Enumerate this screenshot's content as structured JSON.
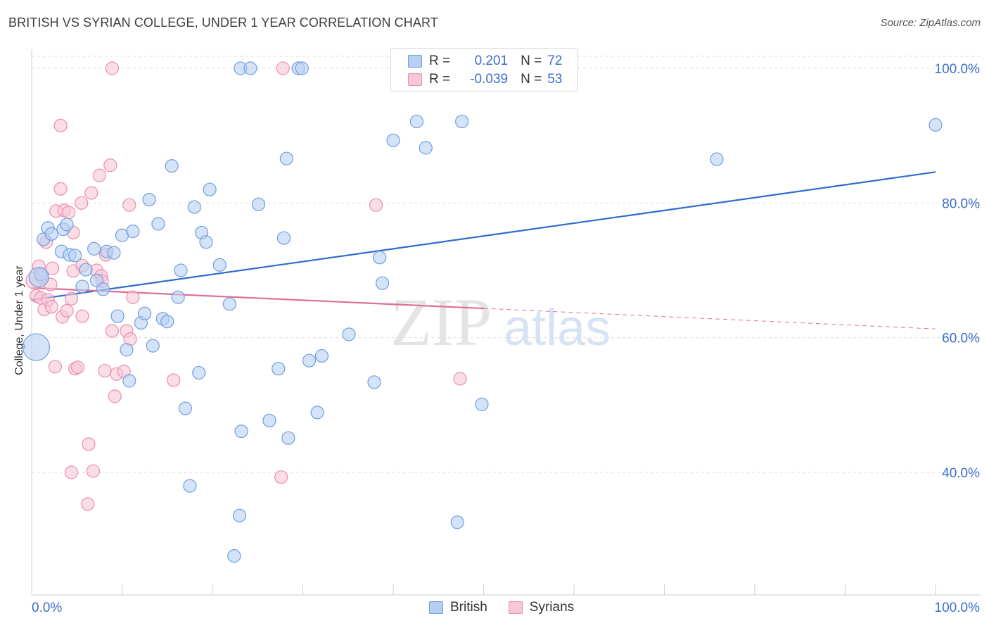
{
  "title": "BRITISH VS SYRIAN COLLEGE, UNDER 1 YEAR CORRELATION CHART",
  "source": "Source: ZipAtlas.com",
  "watermark": {
    "zip": "ZIP",
    "atlas": "atlas"
  },
  "legend": {
    "british": {
      "r_label": "R =",
      "r_value": "0.201",
      "n_label": "N =",
      "n_value": "72"
    },
    "syrians": {
      "r_label": "R =",
      "r_value": "-0.039",
      "n_label": "N =",
      "n_value": "53"
    }
  },
  "colors": {
    "british_fill": "#b7d0f2",
    "british_stroke": "#6f9ee0",
    "british_line": "#2f6ccc",
    "syrians_fill": "#f8c6d6",
    "syrians_stroke": "#ea8eb0",
    "syrians_line": "#e06f96",
    "axis_text": "#3a6fc9",
    "grid": "#dcdcdc"
  },
  "chart_data": {
    "type": "scatter",
    "xlabel": "",
    "ylabel": "College, Under 1 year",
    "x_tick_labels": [
      "0.0%",
      "100.0%"
    ],
    "y_tick_labels": [
      "40.0%",
      "60.0%",
      "80.0%",
      "100.0%"
    ],
    "x_range": [
      0,
      100
    ],
    "y_range": [
      20,
      102
    ],
    "grid": true,
    "legend_position": "top-center",
    "series": [
      {
        "name": "British",
        "r": 0.201,
        "n": 72,
        "trend": {
          "x": [
            0,
            100
          ],
          "y": [
            65.6,
            84.6
          ],
          "dashed_from": null
        },
        "points": [
          [
            1.0,
            69.4
          ],
          [
            1.3,
            74.6
          ],
          [
            1.8,
            76.3
          ],
          [
            2.2,
            75.4
          ],
          [
            3.5,
            76.1
          ],
          [
            3.9,
            76.8
          ],
          [
            3.3,
            72.8
          ],
          [
            4.2,
            72.3
          ],
          [
            4.8,
            72.2
          ],
          [
            5.6,
            67.6
          ],
          [
            6.0,
            70.1
          ],
          [
            6.9,
            73.2
          ],
          [
            7.2,
            68.5
          ],
          [
            7.9,
            67.2
          ],
          [
            8.3,
            72.8
          ],
          [
            9.1,
            72.6
          ],
          [
            9.5,
            63.2
          ],
          [
            10.0,
            75.2
          ],
          [
            10.5,
            58.2
          ],
          [
            10.8,
            53.6
          ],
          [
            11.2,
            75.8
          ],
          [
            12.1,
            62.2
          ],
          [
            12.5,
            63.6
          ],
          [
            13.0,
            80.5
          ],
          [
            13.4,
            58.8
          ],
          [
            14.0,
            76.9
          ],
          [
            14.5,
            62.8
          ],
          [
            15.0,
            62.4
          ],
          [
            15.5,
            85.5
          ],
          [
            16.2,
            66.0
          ],
          [
            16.5,
            70.0
          ],
          [
            17.0,
            49.5
          ],
          [
            17.5,
            38.0
          ],
          [
            18.0,
            79.4
          ],
          [
            18.5,
            54.8
          ],
          [
            18.8,
            75.6
          ],
          [
            19.3,
            74.2
          ],
          [
            19.7,
            82.0
          ],
          [
            20.8,
            70.8
          ],
          [
            21.9,
            65.0
          ],
          [
            22.4,
            27.6
          ],
          [
            23.0,
            33.6
          ],
          [
            23.2,
            46.1
          ],
          [
            23.1,
            100.0
          ],
          [
            24.2,
            100.0
          ],
          [
            25.1,
            79.8
          ],
          [
            26.3,
            47.7
          ],
          [
            27.3,
            55.4
          ],
          [
            27.9,
            74.8
          ],
          [
            28.2,
            86.6
          ],
          [
            28.4,
            45.1
          ],
          [
            29.5,
            100.0
          ],
          [
            29.9,
            100.0
          ],
          [
            30.7,
            56.6
          ],
          [
            31.6,
            48.9
          ],
          [
            32.1,
            57.3
          ],
          [
            35.1,
            60.5
          ],
          [
            37.9,
            53.4
          ],
          [
            38.5,
            71.9
          ],
          [
            38.8,
            68.1
          ],
          [
            40.0,
            89.3
          ],
          [
            42.6,
            92.1
          ],
          [
            43.6,
            88.2
          ],
          [
            47.1,
            32.6
          ],
          [
            47.6,
            92.1
          ],
          [
            49.8,
            50.1
          ],
          [
            50.1,
            100.0
          ],
          [
            51.8,
            100.0
          ],
          [
            75.8,
            86.5
          ],
          [
            100.0,
            91.6
          ],
          [
            0.5,
            58.6
          ],
          [
            0.8,
            69.0
          ]
        ],
        "sizes": [
          24,
          24,
          24,
          24,
          24,
          24,
          24,
          24,
          24,
          24,
          24,
          24,
          24,
          24,
          24,
          24,
          24,
          24,
          24,
          24,
          24,
          24,
          24,
          24,
          24,
          24,
          24,
          24,
          24,
          24,
          24,
          24,
          24,
          24,
          24,
          24,
          24,
          24,
          24,
          24,
          24,
          24,
          24,
          24,
          24,
          24,
          24,
          24,
          24,
          24,
          24,
          24,
          24,
          24,
          24,
          24,
          24,
          24,
          24,
          24,
          24,
          24,
          24,
          24,
          24,
          24,
          24,
          24,
          24,
          24,
          44,
          34
        ]
      },
      {
        "name": "Syrians",
        "r": -0.039,
        "n": 53,
        "trend": {
          "x": [
            0,
            100
          ],
          "y": [
            67.4,
            61.3
          ],
          "dashed_from": 50
        },
        "points": [
          [
            0.3,
            68.5
          ],
          [
            0.5,
            66.2
          ],
          [
            0.8,
            70.6
          ],
          [
            1.0,
            65.9
          ],
          [
            1.1,
            69.0
          ],
          [
            1.4,
            64.2
          ],
          [
            1.6,
            74.2
          ],
          [
            1.8,
            65.6
          ],
          [
            2.2,
            64.6
          ],
          [
            2.1,
            67.9
          ],
          [
            2.3,
            70.3
          ],
          [
            2.7,
            78.8
          ],
          [
            2.6,
            55.7
          ],
          [
            3.2,
            91.5
          ],
          [
            3.2,
            82.1
          ],
          [
            3.4,
            63.1
          ],
          [
            3.6,
            78.9
          ],
          [
            3.9,
            64.0
          ],
          [
            4.1,
            78.6
          ],
          [
            4.4,
            65.8
          ],
          [
            4.6,
            69.9
          ],
          [
            4.4,
            40.0
          ],
          [
            4.6,
            75.6
          ],
          [
            4.8,
            55.4
          ],
          [
            5.1,
            55.6
          ],
          [
            5.6,
            63.2
          ],
          [
            5.5,
            80.0
          ],
          [
            5.6,
            70.7
          ],
          [
            6.2,
            35.3
          ],
          [
            6.3,
            44.2
          ],
          [
            6.6,
            81.5
          ],
          [
            6.8,
            40.2
          ],
          [
            7.2,
            70.0
          ],
          [
            7.5,
            84.1
          ],
          [
            7.7,
            69.2
          ],
          [
            7.8,
            68.4
          ],
          [
            8.1,
            55.1
          ],
          [
            8.2,
            72.3
          ],
          [
            8.7,
            85.6
          ],
          [
            8.9,
            61.0
          ],
          [
            9.2,
            51.3
          ],
          [
            9.4,
            54.6
          ],
          [
            10.2,
            55.0
          ],
          [
            10.5,
            61.0
          ],
          [
            10.8,
            79.7
          ],
          [
            10.9,
            59.8
          ],
          [
            11.2,
            66.0
          ],
          [
            15.7,
            53.7
          ],
          [
            27.6,
            39.3
          ],
          [
            27.8,
            100.0
          ],
          [
            38.1,
            79.7
          ],
          [
            47.4,
            53.9
          ],
          [
            8.9,
            100.0
          ]
        ],
        "sizes": [
          30,
          24,
          24,
          24,
          24,
          24,
          24,
          24,
          24,
          24,
          24,
          24,
          24,
          24,
          24,
          24,
          24,
          24,
          24,
          24,
          24,
          24,
          24,
          24,
          24,
          24,
          24,
          24,
          24,
          24,
          24,
          24,
          24,
          24,
          24,
          24,
          24,
          24,
          24,
          24,
          24,
          24,
          24,
          24,
          24,
          24,
          24,
          24,
          24,
          24,
          24,
          24,
          24
        ]
      }
    ]
  }
}
